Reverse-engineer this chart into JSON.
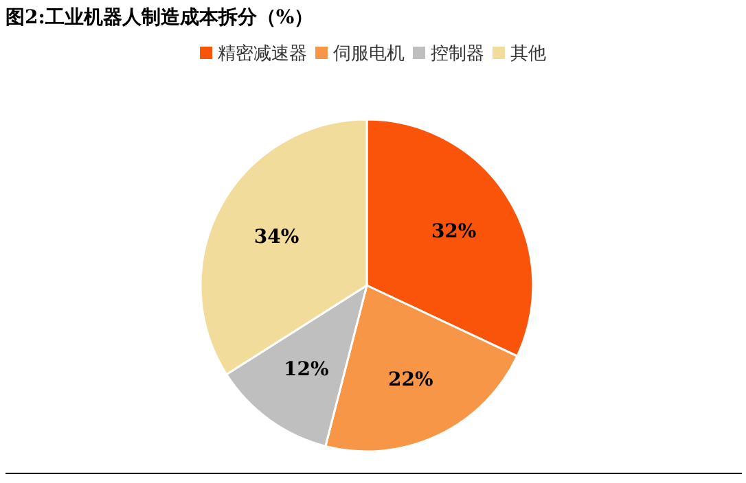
{
  "chart_data": {
    "type": "pie",
    "title": "图2:工业机器人制造成本拆分（%）",
    "categories": [
      "精密减速器",
      "伺服电机",
      "控制器",
      "其他"
    ],
    "values": [
      32,
      22,
      12,
      34
    ],
    "colors": [
      "#fa540a",
      "#f79646",
      "#bfbfbf",
      "#f2dc9b"
    ],
    "value_labels": [
      "32%",
      "22%",
      "12%",
      "34%"
    ],
    "legend": "top"
  }
}
